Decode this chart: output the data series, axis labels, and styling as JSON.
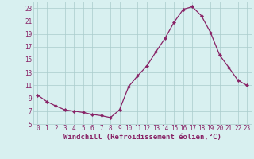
{
  "x": [
    0,
    1,
    2,
    3,
    4,
    5,
    6,
    7,
    8,
    9,
    10,
    11,
    12,
    13,
    14,
    15,
    16,
    17,
    18,
    19,
    20,
    21,
    22,
    23
  ],
  "y": [
    9.5,
    8.5,
    7.8,
    7.2,
    7.0,
    6.8,
    6.5,
    6.3,
    6.0,
    7.2,
    10.8,
    12.5,
    14.0,
    16.2,
    18.3,
    20.8,
    22.8,
    23.2,
    21.8,
    19.2,
    15.7,
    13.8,
    11.8,
    11.0
  ],
  "line_color": "#882266",
  "marker": "D",
  "marker_size": 2.2,
  "bg_color": "#d8f0f0",
  "grid_color": "#aacccc",
  "tick_color": "#882266",
  "label_color": "#882266",
  "xlabel": "Windchill (Refroidissement éolien,°C)",
  "xlim": [
    -0.5,
    23.5
  ],
  "ylim": [
    5,
    24
  ],
  "yticks": [
    5,
    7,
    9,
    11,
    13,
    15,
    17,
    19,
    21,
    23
  ],
  "xticks": [
    0,
    1,
    2,
    3,
    4,
    5,
    6,
    7,
    8,
    9,
    10,
    11,
    12,
    13,
    14,
    15,
    16,
    17,
    18,
    19,
    20,
    21,
    22,
    23
  ],
  "font_size": 5.5,
  "xlabel_fontsize": 6.5
}
